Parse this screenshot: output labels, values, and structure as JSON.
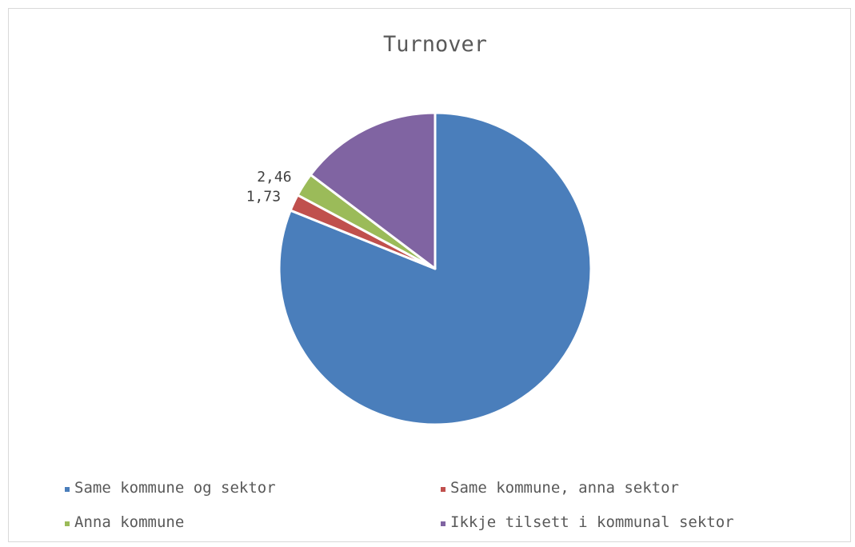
{
  "chart_data": {
    "type": "pie",
    "title": "Turnover",
    "categories": [
      "Same kommune og sektor",
      "Same kommune, anna sektor",
      "Anna kommune",
      "Ikkje tilsett i kommunal sektor"
    ],
    "values": [
      81.1,
      1.73,
      2.46,
      14.71
    ],
    "data_labels": [
      "",
      "1,73",
      "2,46",
      ""
    ],
    "colors": [
      "#4a7ebb",
      "#c0504d",
      "#9bbb59",
      "#8064a2"
    ],
    "legend_position": "bottom",
    "start_angle": "12 o'clock",
    "direction": "clockwise"
  }
}
